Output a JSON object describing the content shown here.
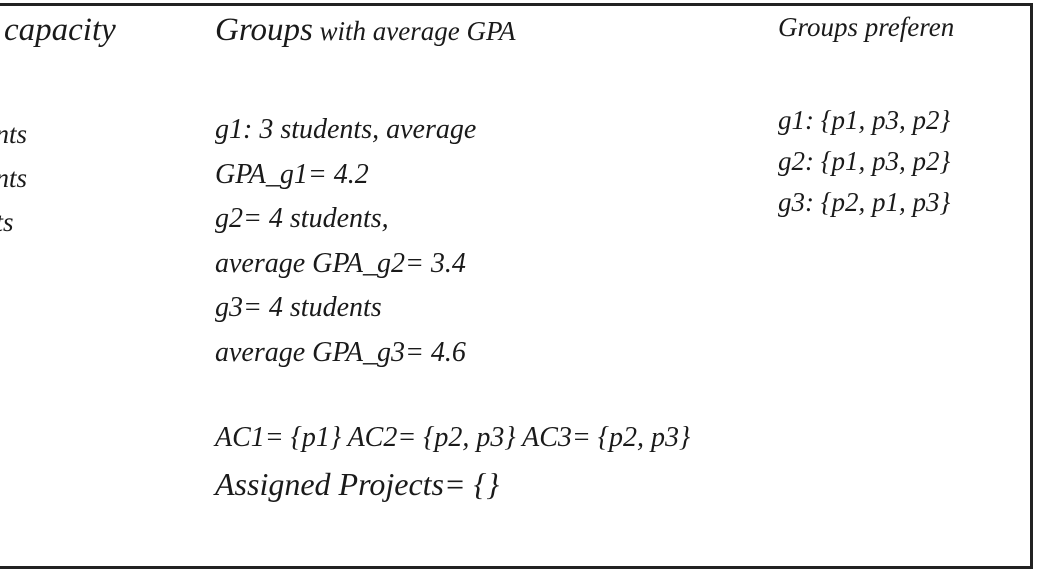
{
  "headers": {
    "capacity": "capacity",
    "groups_main": "Groups",
    "groups_rest": " with average GPA",
    "preferences": "Groups preferen"
  },
  "capacity_lines": [
    "dents",
    "dents",
    "ents"
  ],
  "gpa_lines": [
    "g1:  3 students, average",
    "GPA_g1= 4.2",
    "g2= 4 students,",
    "average GPA_g2= 3.4",
    "g3= 4 students",
    "average GPA_g3= 4.6"
  ],
  "preference_lines": [
    "g1: {p1, p3, p2}",
    "g2: {p1, p3, p2}",
    "g3: {p2, p1, p3}"
  ],
  "ac_line": "AC1= {p1} AC2= {p2, p3} AC3= {p2, p3}",
  "assigned_line": "Assigned Projects= {}"
}
